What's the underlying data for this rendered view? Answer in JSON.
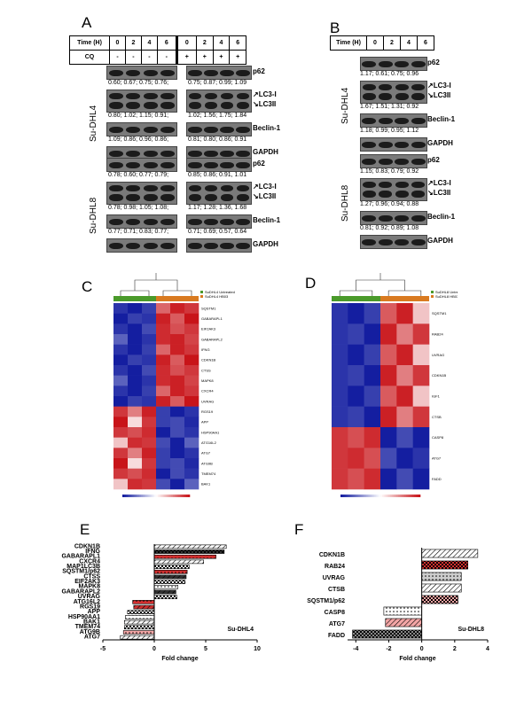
{
  "panels": {
    "A": {
      "letter": "A",
      "time_header": "Time (H)",
      "cq_header": "CQ",
      "times": [
        "0",
        "2",
        "4",
        "6",
        "0",
        "2",
        "4",
        "6"
      ],
      "cq": [
        "-",
        "-",
        "-",
        "-",
        "+",
        "+",
        "+",
        "+"
      ],
      "lines": [
        {
          "name": "Su-DHL4",
          "rows": [
            {
              "label": "p62",
              "left": "0.60; 0.67; 0.75; 0.76;",
              "right": "0.75; 0.87; 0.99; 1.09"
            },
            {
              "label": "LC3-I / LC3II",
              "label1": "LC3-I",
              "label2": "LC3II",
              "left": "0.80; 1.02; 1.15; 0.91;",
              "right": "1.02; 1.56; 1.75; 1.84"
            },
            {
              "label": "Beclin-1",
              "left": "1.09; 0.86; 0.96; 0.86;",
              "right": "0.81; 0.80; 0.86; 0.91"
            },
            {
              "label": "GAPDH",
              "left": "",
              "right": ""
            }
          ]
        },
        {
          "name": "Su-DHL8",
          "rows": [
            {
              "label": "p62",
              "left": "0.78; 0.60; 0.77; 0.79;",
              "right": "0.85; 0.86; 0.91, 1.01"
            },
            {
              "label": "LC3-I / LC3II",
              "label1": "LC3-I",
              "label2": "LC3II",
              "left": "0.78; 0.98; 1.05; 1.08;",
              "right": "1.17; 1.28; 1.36, 1.68"
            },
            {
              "label": "Beclin-1",
              "left": "0.77; 0.71; 0.83; 0.77;",
              "right": "0.71; 0.69; 0.57, 0.64"
            },
            {
              "label": "GAPDH",
              "left": "",
              "right": ""
            }
          ]
        }
      ]
    },
    "B": {
      "letter": "B",
      "time_header": "Time (H)",
      "times": [
        "0",
        "2",
        "4",
        "6"
      ],
      "lines": [
        {
          "name": "Su-DHL4",
          "rows": [
            {
              "label": "p62",
              "vals": "1.17; 0.61; 0.75; 0.96"
            },
            {
              "label1": "LC3-I",
              "label2": "LC3II",
              "vals": "1.67; 1.51; 1.31; 0.92"
            },
            {
              "label": "Beclin-1",
              "vals": "1.18; 0.99; 0.95; 1.12"
            },
            {
              "label": "GAPDH",
              "vals": ""
            }
          ]
        },
        {
          "name": "Su-DHL8",
          "rows": [
            {
              "label": "p62",
              "vals": "1.15; 0.83; 0.79; 0.92"
            },
            {
              "label1": "LC3-I",
              "label2": "LC3II",
              "vals": "1.27; 0.96; 0.94; 0.88"
            },
            {
              "label": "Beclin-1",
              "vals": "0.81; 0.92; 0.89; 1.08"
            },
            {
              "label": "GAPDH",
              "vals": ""
            }
          ]
        }
      ]
    },
    "C": {
      "letter": "C",
      "legend": [
        "SuDHL4 Untreated",
        "SuDHL4 HB03"
      ],
      "genes": [
        "SQSTM1",
        "GABARAPL1",
        "EIF2AK3",
        "GABARAPL2",
        "IFNG",
        "CDKN1B",
        "CTSS",
        "MAPK8",
        "CXCR4",
        "UVRAG",
        "RGS19",
        "APP",
        "HSP90AA1",
        "ATG16L2",
        "ATG7",
        "ATG9B",
        "TMEM74",
        "BAK1"
      ]
    },
    "D": {
      "letter": "D",
      "legend": [
        "SuDHL8 Untreated",
        "SuDHL8 HB03"
      ],
      "genes": [
        "SQSTM1",
        "RAB24",
        "UVRAG",
        "CDKN1B",
        "IGF1",
        "CTSB",
        "CASP8",
        "ATG7",
        "FADD"
      ]
    },
    "E": {
      "letter": "E",
      "cell_line": "Su-DHL4",
      "xlabel": "Fold change"
    },
    "F": {
      "letter": "F",
      "cell_line": "Su-DHL8",
      "xlabel": "Fold change"
    }
  },
  "chart_data": [
    {
      "type": "bar",
      "orientation": "horizontal",
      "panel": "E",
      "categories": [
        "CDKN1B",
        "IFNG",
        "GABARAPL1",
        "CXCR4",
        "MAP1LC3B",
        "SQSTM1/p62",
        "CTSS",
        "EIF2AK3",
        "MAPK8",
        "GABARAPL2",
        "UVRAG",
        "ATG16L2",
        "RGS19",
        "APP",
        "HSP90AA1",
        "BAK1",
        "TMEM74",
        "ATG9B",
        "ATG7"
      ],
      "values": [
        7.0,
        6.8,
        6.0,
        4.8,
        3.4,
        3.2,
        3.1,
        3.0,
        2.3,
        2.1,
        2.2,
        -2.1,
        -2.0,
        -2.6,
        -2.8,
        -2.9,
        -2.9,
        -3.0,
        -3.3
      ],
      "xlabel": "Fold change",
      "xlim": [
        -5,
        10
      ],
      "xticks": [
        -5,
        0,
        5,
        10
      ],
      "colors": [
        "#ffffff",
        "#333333",
        "#d32f2f",
        "#ffffff",
        "#ffffff",
        "#d32f2f",
        "#333333",
        "#ffffff",
        "#ffffff",
        "#333333",
        "#ffffff",
        "#d32f2f",
        "#d32f2f",
        "#ffffff",
        "#ffffff",
        "#ffffff",
        "#ffffff",
        "#f4a6a6",
        "#ffffff"
      ]
    },
    {
      "type": "bar",
      "orientation": "horizontal",
      "panel": "F",
      "categories": [
        "CDKN1B",
        "RAB24",
        "UVRAG",
        "CTSB",
        "SQSTM1/p62",
        "CASP8",
        "ATG7",
        "FADD"
      ],
      "values": [
        3.4,
        2.8,
        2.4,
        2.4,
        2.2,
        -2.3,
        -2.2,
        -4.2
      ],
      "xlabel": "Fold change",
      "xlim": [
        -4.5,
        4
      ],
      "xticks": [
        -4,
        -2,
        0,
        2,
        4
      ],
      "colors": [
        "#ffffff",
        "#d32f2f",
        "#cccccc",
        "#ffffff",
        "#f4a6a6",
        "#ffffff",
        "#f4a6a6",
        "#888888"
      ]
    }
  ]
}
